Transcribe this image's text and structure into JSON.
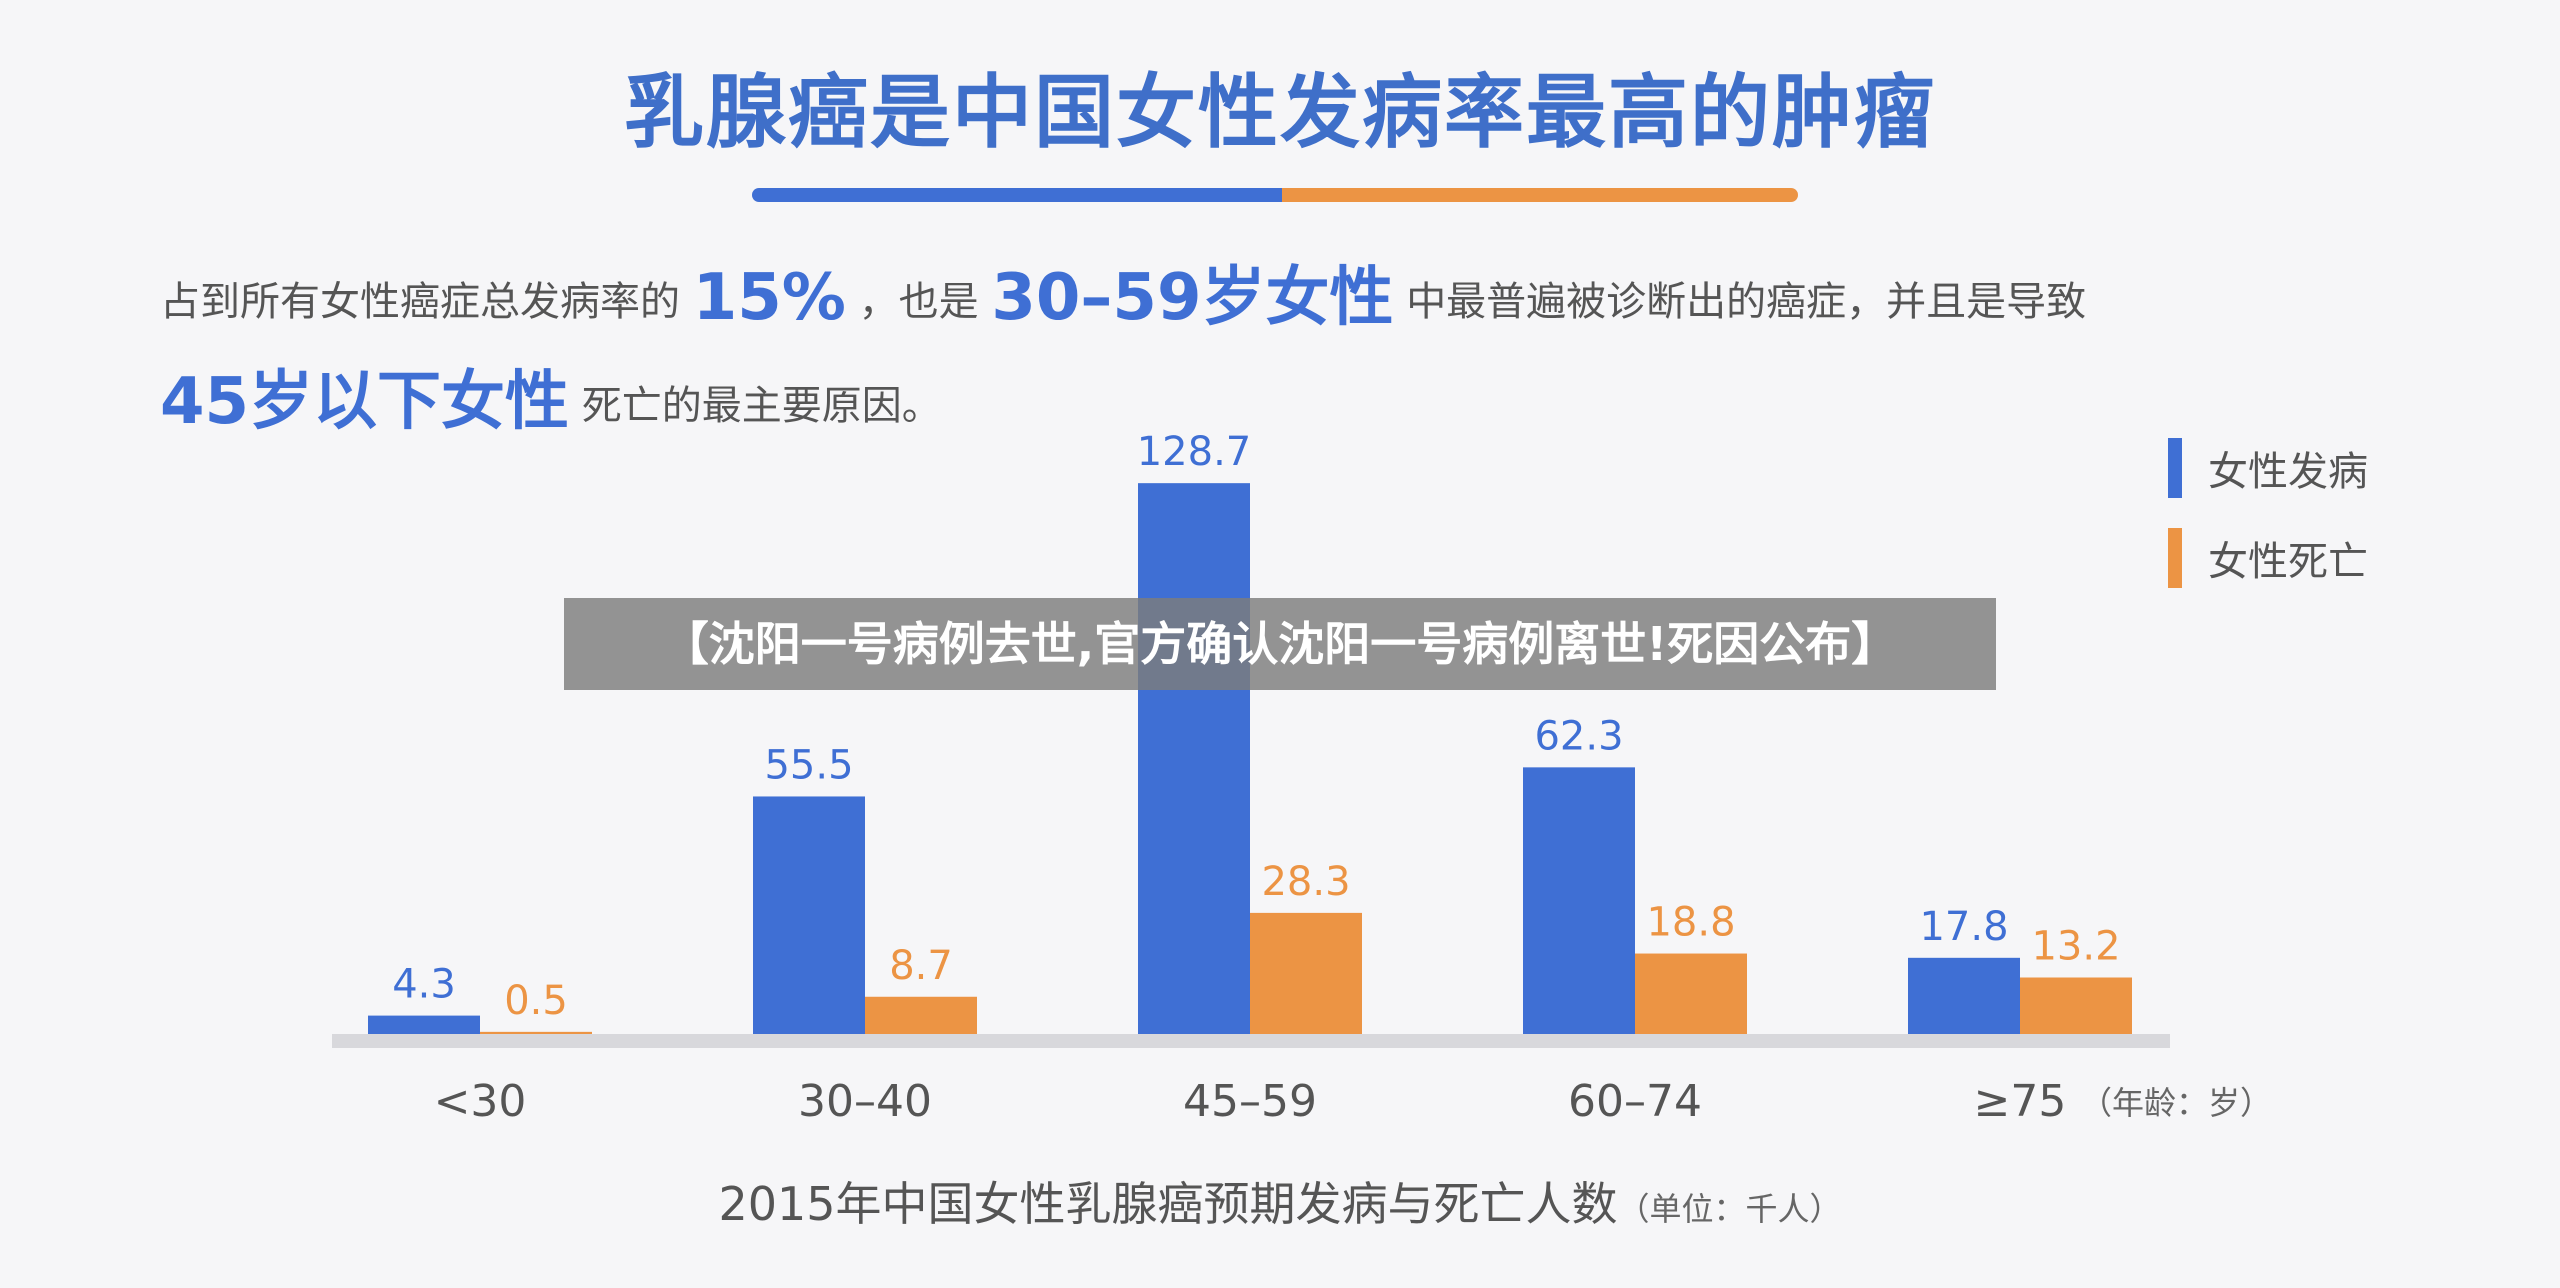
{
  "header": {
    "title": "乳腺癌是中国女性发病率最高的肿瘤"
  },
  "summary": {
    "part1": "占到所有女性癌症总发病率的",
    "hl1": "15%",
    "part2": "，也是",
    "hl2": "30–59岁女性",
    "part3": "中最普遍被诊断出的癌症，并且是导致",
    "hl3": "45岁以下女性",
    "part4": "死亡的最主要原因。"
  },
  "overlay": {
    "text": "【沈阳一号病例去世,官方确认沈阳一号病例离世!死因公布】"
  },
  "caption": {
    "text": "2015年中国女性乳腺癌预期发病与死亡人数",
    "unit": "（单位：千人）"
  },
  "colors": {
    "incidence": "#3f6fd4",
    "death": "#ec9444",
    "axis": "#d8d8dc"
  },
  "chart_data": {
    "type": "bar",
    "categories": [
      "<30",
      "30–40",
      "45–59",
      "60–74",
      "≥75"
    ],
    "axis_note": "（年龄：岁）",
    "series": [
      {
        "name": "女性发病",
        "color": "#3f6fd4",
        "values": [
          4.3,
          55.5,
          128.7,
          62.3,
          17.8
        ]
      },
      {
        "name": "女性死亡",
        "color": "#ec9444",
        "values": [
          0.5,
          8.7,
          28.3,
          18.8,
          13.2
        ]
      }
    ],
    "value_labels": [
      [
        "4.3",
        "55.5",
        "128.7",
        "62.3",
        "17.8"
      ],
      [
        "0.5",
        "8.7",
        "28.3",
        "18.8",
        "13.2"
      ]
    ],
    "legend_position": "top-right",
    "grid": false
  }
}
